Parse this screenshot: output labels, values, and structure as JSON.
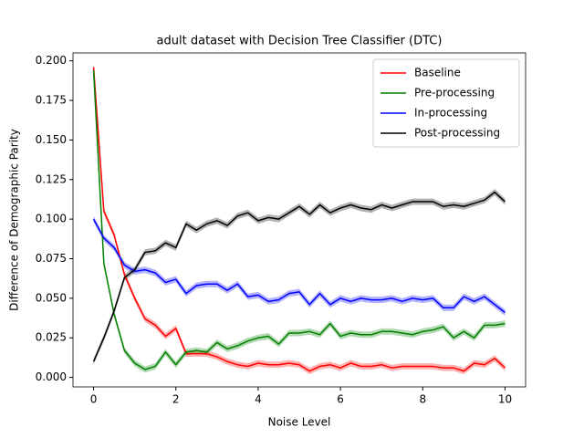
{
  "chart_data": {
    "type": "line",
    "title": "adult dataset with Decision Tree Classifier (DTC)",
    "xlabel": "Noise Level",
    "ylabel": "Difference of Demographic Parity",
    "x": [
      0,
      0.25,
      0.5,
      0.75,
      1,
      1.25,
      1.5,
      1.75,
      2,
      2.25,
      2.5,
      2.75,
      3,
      3.25,
      3.5,
      3.75,
      4,
      4.25,
      4.5,
      4.75,
      5,
      5.25,
      5.5,
      5.75,
      6,
      6.25,
      6.5,
      6.75,
      7,
      7.25,
      7.5,
      7.75,
      8,
      8.25,
      8.5,
      8.75,
      9,
      9.25,
      9.5,
      9.75,
      10
    ],
    "series": [
      {
        "name": "Baseline",
        "color": "#ff0000",
        "band": 0.002,
        "values": [
          0.196,
          0.105,
          0.09,
          0.065,
          0.05,
          0.037,
          0.033,
          0.026,
          0.031,
          0.015,
          0.015,
          0.015,
          0.013,
          0.01,
          0.008,
          0.007,
          0.009,
          0.008,
          0.008,
          0.009,
          0.008,
          0.004,
          0.007,
          0.008,
          0.006,
          0.009,
          0.007,
          0.007,
          0.008,
          0.006,
          0.007,
          0.007,
          0.007,
          0.007,
          0.006,
          0.006,
          0.004,
          0.009,
          0.008,
          0.012,
          0.006
        ]
      },
      {
        "name": "Pre-processing",
        "color": "#008000",
        "band": 0.002,
        "values": [
          0.194,
          0.072,
          0.04,
          0.017,
          0.009,
          0.005,
          0.007,
          0.016,
          0.008,
          0.016,
          0.017,
          0.016,
          0.022,
          0.018,
          0.02,
          0.023,
          0.025,
          0.026,
          0.021,
          0.028,
          0.028,
          0.029,
          0.027,
          0.034,
          0.026,
          0.028,
          0.027,
          0.027,
          0.029,
          0.029,
          0.028,
          0.027,
          0.029,
          0.03,
          0.032,
          0.025,
          0.029,
          0.025,
          0.033,
          0.033,
          0.034
        ]
      },
      {
        "name": "In-processing",
        "color": "#0000ff",
        "band": 0.002,
        "values": [
          0.1,
          0.088,
          0.082,
          0.071,
          0.067,
          0.068,
          0.066,
          0.06,
          0.062,
          0.053,
          0.058,
          0.059,
          0.059,
          0.055,
          0.059,
          0.051,
          0.052,
          0.048,
          0.049,
          0.053,
          0.054,
          0.046,
          0.053,
          0.046,
          0.05,
          0.048,
          0.05,
          0.049,
          0.049,
          0.05,
          0.048,
          0.05,
          0.049,
          0.05,
          0.044,
          0.044,
          0.051,
          0.048,
          0.051,
          0.046,
          0.041
        ]
      },
      {
        "name": "Post-processing",
        "color": "#000000",
        "band": 0.002,
        "values": [
          0.01,
          0.025,
          0.042,
          0.063,
          0.068,
          0.079,
          0.08,
          0.085,
          0.082,
          0.097,
          0.093,
          0.097,
          0.099,
          0.096,
          0.102,
          0.104,
          0.099,
          0.101,
          0.1,
          0.104,
          0.108,
          0.103,
          0.109,
          0.104,
          0.107,
          0.109,
          0.107,
          0.106,
          0.109,
          0.107,
          0.109,
          0.111,
          0.111,
          0.111,
          0.108,
          0.109,
          0.108,
          0.11,
          0.112,
          0.117,
          0.111
        ]
      }
    ],
    "xlim": [
      -0.5,
      10.5
    ],
    "xticks": [
      0,
      2,
      4,
      6,
      8,
      10
    ],
    "ylim": [
      -0.006,
      0.205
    ],
    "yticks": [
      {
        "value": 0,
        "label": "0.000"
      },
      {
        "value": 0.025,
        "label": "0.025"
      },
      {
        "value": 0.05,
        "label": "0.050"
      },
      {
        "value": 0.075,
        "label": "0.075"
      },
      {
        "value": 0.1,
        "label": "0.100"
      },
      {
        "value": 0.125,
        "label": "0.125"
      },
      {
        "value": 0.15,
        "label": "0.150"
      },
      {
        "value": 0.175,
        "label": "0.175"
      },
      {
        "value": 0.2,
        "label": "0.200"
      }
    ],
    "legend": "upper right",
    "grid": false
  }
}
